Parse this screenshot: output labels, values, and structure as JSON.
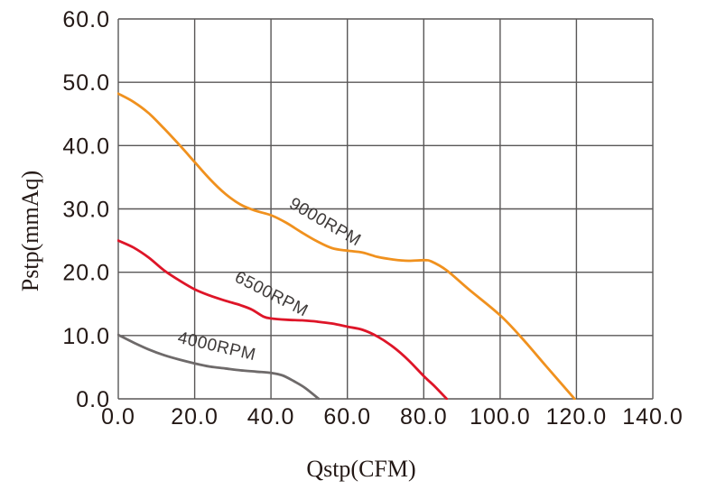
{
  "chart_data": {
    "type": "line",
    "title": "",
    "xlabel": "Qstp(CFM)",
    "ylabel": "Pstp(mmAq)",
    "xlim": [
      0,
      140
    ],
    "ylim": [
      0,
      60
    ],
    "x_ticks": [
      0,
      20,
      40,
      60,
      80,
      100,
      120,
      140
    ],
    "x_tick_labels": [
      "0.0",
      "20.0",
      "40.0",
      "60.0",
      "80.0",
      "100.0",
      "120.0",
      "140.0"
    ],
    "y_ticks": [
      0,
      10,
      20,
      30,
      40,
      50,
      60
    ],
    "y_tick_labels": [
      "0.0",
      "10.0",
      "20.0",
      "30.0",
      "40.0",
      "50.0",
      "60.0"
    ],
    "grid": true,
    "legend_position": "inline-curve-labels",
    "colors": {
      "grid": "#595757",
      "text": "#231815",
      "series_label": "#3E3A39"
    },
    "series": [
      {
        "name": "9000RPM",
        "color": "#F0911E",
        "points": [
          [
            0,
            48.2
          ],
          [
            4,
            46.9
          ],
          [
            8,
            45.1
          ],
          [
            12,
            42.7
          ],
          [
            16,
            40.1
          ],
          [
            20,
            37.4
          ],
          [
            24,
            34.7
          ],
          [
            28,
            32.4
          ],
          [
            32,
            30.7
          ],
          [
            36,
            29.7
          ],
          [
            40,
            29.0
          ],
          [
            44,
            27.8
          ],
          [
            48,
            26.3
          ],
          [
            52,
            24.9
          ],
          [
            56,
            23.8
          ],
          [
            60,
            23.4
          ],
          [
            64,
            23.1
          ],
          [
            68,
            22.4
          ],
          [
            72,
            22.0
          ],
          [
            76,
            21.8
          ],
          [
            80,
            21.9
          ],
          [
            82,
            21.7
          ],
          [
            86,
            20.3
          ],
          [
            92,
            17.2
          ],
          [
            100,
            13.2
          ],
          [
            106,
            9.4
          ],
          [
            112,
            5.2
          ],
          [
            119.5,
            0
          ]
        ],
        "label": {
          "text": "9000RPM",
          "x": 53.5,
          "y": 27.2,
          "rotation": 30
        }
      },
      {
        "name": "6500RPM",
        "color": "#DE1528",
        "points": [
          [
            0,
            25.0
          ],
          [
            4,
            23.9
          ],
          [
            8,
            22.3
          ],
          [
            12,
            20.3
          ],
          [
            16,
            18.7
          ],
          [
            20,
            17.3
          ],
          [
            24,
            16.3
          ],
          [
            28,
            15.5
          ],
          [
            32,
            14.8
          ],
          [
            35,
            14.1
          ],
          [
            38,
            13.0
          ],
          [
            40,
            12.7
          ],
          [
            44,
            12.5
          ],
          [
            48,
            12.4
          ],
          [
            52,
            12.2
          ],
          [
            56,
            11.9
          ],
          [
            60,
            11.4
          ],
          [
            64,
            10.9
          ],
          [
            68,
            9.8
          ],
          [
            72,
            8.2
          ],
          [
            76,
            6.1
          ],
          [
            80,
            3.6
          ],
          [
            83,
            1.9
          ],
          [
            86,
            0
          ]
        ],
        "label": {
          "text": "6500RPM",
          "x": 39.5,
          "y": 15.8,
          "rotation": 27
        }
      },
      {
        "name": "4000RPM",
        "color": "#6E6A6A",
        "points": [
          [
            0,
            10.1
          ],
          [
            4,
            8.9
          ],
          [
            8,
            7.8
          ],
          [
            12,
            6.9
          ],
          [
            16,
            6.2
          ],
          [
            20,
            5.6
          ],
          [
            24,
            5.1
          ],
          [
            28,
            4.8
          ],
          [
            32,
            4.5
          ],
          [
            36,
            4.3
          ],
          [
            40,
            4.1
          ],
          [
            43,
            3.7
          ],
          [
            46,
            2.8
          ],
          [
            49,
            1.7
          ],
          [
            52.5,
            0
          ]
        ],
        "label": {
          "text": "4000RPM",
          "x": 25.5,
          "y": 7.5,
          "rotation": 13
        }
      }
    ]
  }
}
